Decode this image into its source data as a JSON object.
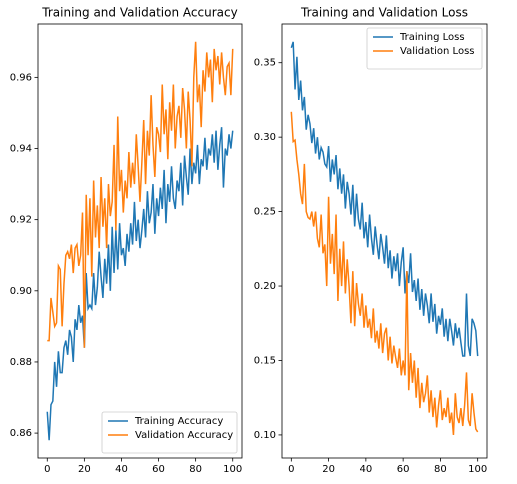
{
  "chart_data": [
    {
      "type": "line",
      "title": "Training and Validation Accuracy",
      "x": [
        0,
        1,
        2,
        3,
        4,
        5,
        6,
        7,
        8,
        9,
        10,
        11,
        12,
        13,
        14,
        15,
        16,
        17,
        18,
        19,
        20,
        21,
        22,
        23,
        24,
        25,
        26,
        27,
        28,
        29,
        30,
        31,
        32,
        33,
        34,
        35,
        36,
        37,
        38,
        39,
        40,
        41,
        42,
        43,
        44,
        45,
        46,
        47,
        48,
        49,
        50,
        51,
        52,
        53,
        54,
        55,
        56,
        57,
        58,
        59,
        60,
        61,
        62,
        63,
        64,
        65,
        66,
        67,
        68,
        69,
        70,
        71,
        72,
        73,
        74,
        75,
        76,
        77,
        78,
        79,
        80,
        81,
        82,
        83,
        84,
        85,
        86,
        87,
        88,
        89,
        90,
        91,
        92,
        93,
        94,
        95,
        96,
        97,
        98,
        99,
        100
      ],
      "series": [
        {
          "name": "Training Accuracy",
          "color": "#1f77b4",
          "values": [
            0.866,
            0.858,
            0.868,
            0.869,
            0.88,
            0.873,
            0.883,
            0.877,
            0.877,
            0.884,
            0.886,
            0.882,
            0.889,
            0.887,
            0.88,
            0.892,
            0.889,
            0.896,
            0.891,
            0.893,
            0.884,
            0.905,
            0.895,
            0.896,
            0.895,
            0.905,
            0.896,
            0.901,
            0.911,
            0.904,
            0.898,
            0.909,
            0.902,
            0.913,
            0.9,
            0.918,
            0.905,
            0.917,
            0.906,
            0.919,
            0.91,
            0.912,
            0.907,
            0.916,
            0.911,
            0.919,
            0.913,
            0.925,
            0.914,
            0.92,
            0.912,
            0.917,
            0.923,
            0.915,
            0.928,
            0.919,
            0.922,
            0.93,
            0.916,
            0.926,
            0.921,
            0.929,
            0.923,
            0.934,
            0.919,
            0.93,
            0.925,
            0.935,
            0.926,
            0.923,
            0.931,
            0.928,
            0.936,
            0.924,
            0.938,
            0.932,
            0.927,
            0.94,
            0.93,
            0.936,
            0.933,
            0.941,
            0.93,
            0.937,
            0.935,
            0.943,
            0.934,
            0.94,
            0.938,
            0.944,
            0.936,
            0.945,
            0.934,
            0.941,
            0.946,
            0.929,
            0.94,
            0.938,
            0.944,
            0.94,
            0.945
          ]
        },
        {
          "name": "Validation Accuracy",
          "color": "#ff7f0e",
          "values": [
            0.886,
            0.886,
            0.898,
            0.894,
            0.89,
            0.891,
            0.907,
            0.906,
            0.89,
            0.902,
            0.91,
            0.911,
            0.909,
            0.913,
            0.905,
            0.912,
            0.913,
            0.907,
            0.91,
            0.922,
            0.884,
            0.927,
            0.91,
            0.926,
            0.904,
            0.931,
            0.915,
            0.924,
            0.912,
            0.932,
            0.918,
            0.926,
            0.912,
            0.93,
            0.921,
            0.925,
            0.941,
            0.917,
            0.949,
            0.928,
            0.934,
            0.922,
            0.931,
            0.926,
            0.939,
            0.929,
            0.936,
            0.93,
            0.944,
            0.935,
            0.925,
            0.936,
            0.948,
            0.93,
            0.945,
            0.938,
            0.955,
            0.941,
            0.932,
            0.946,
            0.944,
            0.939,
            0.958,
            0.944,
            0.951,
            0.937,
            0.953,
            0.945,
            0.958,
            0.94,
            0.949,
            0.952,
            0.943,
            0.957,
            0.951,
            0.94,
            0.956,
            0.948,
            0.935,
            0.96,
            0.97,
            0.953,
            0.958,
            0.946,
            0.962,
            0.956,
            0.967,
            0.96,
            0.965,
            0.953,
            0.968,
            0.962,
            0.966,
            0.958,
            0.967,
            0.96,
            0.955,
            0.963,
            0.964,
            0.955,
            0.968
          ]
        }
      ],
      "xlim": [
        -5,
        105
      ],
      "xticks": [
        0,
        20,
        40,
        60,
        80,
        100
      ],
      "ylim": [
        0.853,
        0.975
      ],
      "yticks": [
        0.86,
        0.88,
        {
          "value": 0.9,
          "label": "0.90"
        },
        0.92,
        0.94,
        0.96
      ],
      "legend": "lower right"
    },
    {
      "type": "line",
      "title": "Training and Validation Loss",
      "x": [
        0,
        1,
        2,
        3,
        4,
        5,
        6,
        7,
        8,
        9,
        10,
        11,
        12,
        13,
        14,
        15,
        16,
        17,
        18,
        19,
        20,
        21,
        22,
        23,
        24,
        25,
        26,
        27,
        28,
        29,
        30,
        31,
        32,
        33,
        34,
        35,
        36,
        37,
        38,
        39,
        40,
        41,
        42,
        43,
        44,
        45,
        46,
        47,
        48,
        49,
        50,
        51,
        52,
        53,
        54,
        55,
        56,
        57,
        58,
        59,
        60,
        61,
        62,
        63,
        64,
        65,
        66,
        67,
        68,
        69,
        70,
        71,
        72,
        73,
        74,
        75,
        76,
        77,
        78,
        79,
        80,
        81,
        82,
        83,
        84,
        85,
        86,
        87,
        88,
        89,
        90,
        91,
        92,
        93,
        94,
        95,
        96,
        97,
        98,
        99,
        100
      ],
      "series": [
        {
          "name": "Training Loss",
          "color": "#1f77b4",
          "values": [
            0.36,
            0.364,
            0.332,
            0.354,
            0.325,
            0.338,
            0.318,
            0.327,
            0.305,
            0.315,
            0.309,
            0.296,
            0.306,
            0.289,
            0.3,
            0.285,
            0.293,
            0.29,
            0.282,
            0.28,
            0.294,
            0.27,
            0.285,
            0.275,
            0.288,
            0.265,
            0.279,
            0.262,
            0.275,
            0.252,
            0.27,
            0.262,
            0.248,
            0.268,
            0.24,
            0.262,
            0.245,
            0.238,
            0.256,
            0.232,
            0.243,
            0.226,
            0.248,
            0.232,
            0.221,
            0.24,
            0.228,
            0.218,
            0.235,
            0.226,
            0.215,
            0.234,
            0.212,
            0.224,
            0.205,
            0.22,
            0.21,
            0.222,
            0.2,
            0.216,
            0.226,
            0.195,
            0.21,
            0.202,
            0.222,
            0.196,
            0.204,
            0.19,
            0.205,
            0.184,
            0.198,
            0.18,
            0.195,
            0.187,
            0.175,
            0.195,
            0.176,
            0.188,
            0.168,
            0.18,
            0.174,
            0.185,
            0.166,
            0.178,
            0.163,
            0.178,
            0.17,
            0.16,
            0.175,
            0.165,
            0.172,
            0.162,
            0.153,
            0.153,
            0.195,
            0.16,
            0.153,
            0.178,
            0.175,
            0.17,
            0.153
          ]
        },
        {
          "name": "Validation Loss",
          "color": "#ff7f0e",
          "values": [
            0.317,
            0.297,
            0.298,
            0.285,
            0.275,
            0.262,
            0.255,
            0.282,
            0.25,
            0.246,
            0.245,
            0.25,
            0.24,
            0.25,
            0.232,
            0.226,
            0.248,
            0.222,
            0.228,
            0.2,
            0.26,
            0.215,
            0.235,
            0.208,
            0.248,
            0.19,
            0.225,
            0.2,
            0.23,
            0.195,
            0.218,
            0.2,
            0.175,
            0.21,
            0.173,
            0.202,
            0.188,
            0.18,
            0.195,
            0.172,
            0.187,
            0.172,
            0.178,
            0.165,
            0.185,
            0.162,
            0.17,
            0.158,
            0.175,
            0.155,
            0.168,
            0.172,
            0.15,
            0.166,
            0.148,
            0.16,
            0.152,
            0.145,
            0.158,
            0.14,
            0.15,
            0.14,
            0.21,
            0.13,
            0.155,
            0.135,
            0.15,
            0.125,
            0.145,
            0.118,
            0.135,
            0.122,
            0.128,
            0.14,
            0.115,
            0.13,
            0.112,
            0.125,
            0.105,
            0.12,
            0.13,
            0.11,
            0.118,
            0.112,
            0.125,
            0.108,
            0.115,
            0.1,
            0.128,
            0.112,
            0.108,
            0.118,
            0.106,
            0.12,
            0.142,
            0.11,
            0.106,
            0.128,
            0.115,
            0.104,
            0.102
          ]
        }
      ],
      "xlim": [
        -5,
        105
      ],
      "xticks": [
        0,
        20,
        40,
        60,
        80,
        100
      ],
      "ylim": [
        0.0845,
        0.376
      ],
      "yticks": [
        {
          "value": 0.1,
          "label": "0.10"
        },
        0.15,
        {
          "value": 0.2,
          "label": "0.20"
        },
        0.25,
        {
          "value": 0.3,
          "label": "0.30"
        },
        0.35
      ],
      "legend": "upper right"
    }
  ]
}
